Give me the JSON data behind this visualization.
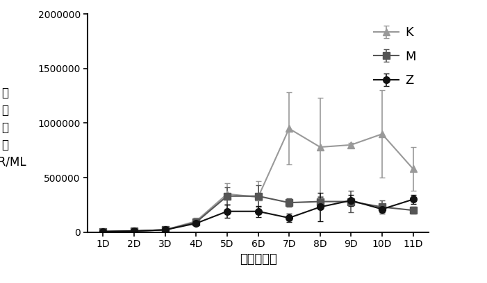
{
  "x_labels": [
    "1D",
    "2D",
    "3D",
    "4D",
    "5D",
    "6D",
    "7D",
    "8D",
    "9D",
    "10D",
    "11D"
  ],
  "x_values": [
    1,
    2,
    3,
    4,
    5,
    6,
    7,
    8,
    9,
    10,
    11
  ],
  "K_values": [
    5000,
    10000,
    20000,
    100000,
    350000,
    320000,
    950000,
    780000,
    800000,
    900000,
    580000
  ],
  "K_errors": [
    5000,
    5000,
    10000,
    30000,
    100000,
    150000,
    330000,
    450000,
    20000,
    400000,
    200000
  ],
  "M_values": [
    5000,
    10000,
    20000,
    90000,
    330000,
    330000,
    270000,
    280000,
    280000,
    230000,
    200000
  ],
  "M_errors": [
    5000,
    5000,
    10000,
    20000,
    80000,
    100000,
    40000,
    40000,
    100000,
    60000,
    30000
  ],
  "Z_values": [
    5000,
    10000,
    20000,
    80000,
    190000,
    190000,
    130000,
    230000,
    290000,
    210000,
    300000
  ],
  "Z_errors": [
    5000,
    5000,
    10000,
    20000,
    60000,
    50000,
    40000,
    130000,
    50000,
    30000,
    40000
  ],
  "K_color": "#999999",
  "M_color": "#555555",
  "Z_color": "#111111",
  "ylabel_chinese": "细\n胞\n数\n目\nBER/ML",
  "xlabel": "时间（天）",
  "ylim": [
    0,
    2000000
  ],
  "yticks": [
    0,
    500000,
    1000000,
    1500000,
    2000000
  ],
  "legend_labels": [
    "K",
    "M",
    "Z"
  ],
  "background_color": "#ffffff",
  "axis_fontsize": 13,
  "tick_fontsize": 10
}
